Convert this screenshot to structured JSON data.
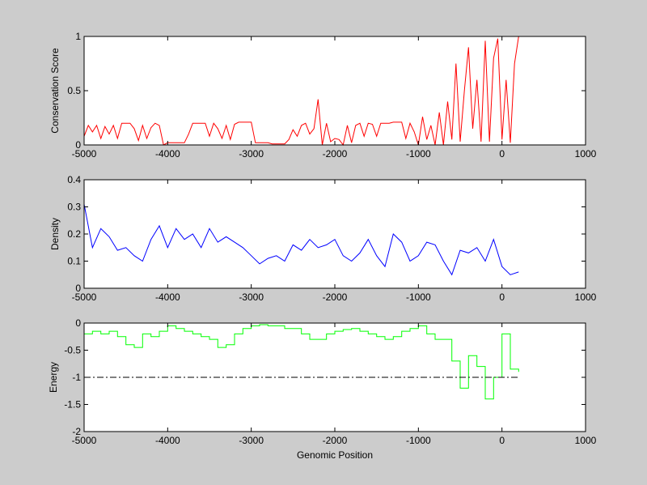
{
  "chart_data": [
    {
      "type": "line",
      "ylabel": "Conservation Score",
      "xlabel": "",
      "xlim": [
        -5000,
        1000
      ],
      "ylim": [
        0,
        1
      ],
      "xticks": [
        -5000,
        -4000,
        -3000,
        -2000,
        -1000,
        0,
        1000
      ],
      "yticks": [
        0,
        0.5,
        1
      ],
      "color": "#ff0000",
      "x_start": -5000,
      "x_step": 50,
      "values": [
        0.08,
        0.18,
        0.12,
        0.18,
        0.06,
        0.17,
        0.1,
        0.18,
        0.06,
        0.2,
        0.2,
        0.2,
        0.15,
        0.04,
        0.18,
        0.06,
        0.16,
        0.2,
        0.18,
        0.0,
        0.02,
        0.02,
        0.02,
        0.02,
        0.02,
        0.1,
        0.2,
        0.2,
        0.2,
        0.2,
        0.08,
        0.2,
        0.15,
        0.06,
        0.18,
        0.05,
        0.19,
        0.21,
        0.21,
        0.21,
        0.21,
        0.02,
        0.02,
        0.02,
        0.02,
        0.01,
        0.01,
        0.01,
        0.01,
        0.05,
        0.14,
        0.08,
        0.18,
        0.2,
        0.1,
        0.15,
        0.42,
        0.0,
        0.2,
        0.03,
        0.06,
        0.05,
        0.0,
        0.18,
        0.02,
        0.18,
        0.2,
        0.08,
        0.2,
        0.19,
        0.08,
        0.2,
        0.2,
        0.2,
        0.21,
        0.21,
        0.21,
        0.06,
        0.2,
        0.12,
        0.0,
        0.26,
        0.05,
        0.18,
        0.0,
        0.3,
        0.0,
        0.4,
        0.05,
        0.75,
        0.03,
        0.5,
        0.9,
        0.15,
        0.6,
        0.03,
        0.96,
        0.03,
        0.8,
        0.98,
        0.05,
        0.6,
        0.02,
        0.75,
        1.0
      ]
    },
    {
      "type": "line",
      "ylabel": "Density",
      "xlabel": "",
      "xlim": [
        -5000,
        1000
      ],
      "ylim": [
        0,
        0.4
      ],
      "xticks": [
        -5000,
        -4000,
        -3000,
        -2000,
        -1000,
        0,
        1000
      ],
      "yticks": [
        0,
        0.1,
        0.2,
        0.3,
        0.4
      ],
      "color": "#0000ff",
      "x_start": -5000,
      "x_step": 100,
      "values": [
        0.31,
        0.15,
        0.22,
        0.19,
        0.14,
        0.15,
        0.12,
        0.1,
        0.18,
        0.23,
        0.15,
        0.22,
        0.18,
        0.2,
        0.15,
        0.22,
        0.17,
        0.19,
        0.17,
        0.15,
        0.12,
        0.09,
        0.11,
        0.12,
        0.1,
        0.16,
        0.14,
        0.18,
        0.15,
        0.16,
        0.18,
        0.12,
        0.1,
        0.13,
        0.18,
        0.12,
        0.08,
        0.2,
        0.17,
        0.1,
        0.12,
        0.17,
        0.16,
        0.1,
        0.05,
        0.14,
        0.13,
        0.15,
        0.1,
        0.18,
        0.08,
        0.05,
        0.06
      ]
    },
    {
      "type": "line",
      "ylabel": "Energy",
      "xlabel": "Genomic Position",
      "xlim": [
        -5000,
        1000
      ],
      "ylim": [
        -2,
        0
      ],
      "xticks": [
        -5000,
        -4000,
        -3000,
        -2000,
        -1000,
        0,
        1000
      ],
      "yticks": [
        -2,
        -1.5,
        -1,
        -0.5,
        0
      ],
      "color": "#00ff00",
      "stairs": true,
      "threshold": {
        "value": -1,
        "x_from": -5000,
        "x_to": 200,
        "style": "dash-dot",
        "color": "#000000"
      },
      "x_start": -5000,
      "x_step": 100,
      "values": [
        -0.2,
        -0.15,
        -0.2,
        -0.15,
        -0.25,
        -0.4,
        -0.45,
        -0.2,
        -0.25,
        -0.15,
        -0.05,
        -0.1,
        -0.15,
        -0.2,
        -0.25,
        -0.3,
        -0.45,
        -0.4,
        -0.2,
        -0.1,
        -0.05,
        -0.03,
        -0.05,
        -0.05,
        -0.1,
        -0.1,
        -0.2,
        -0.3,
        -0.3,
        -0.2,
        -0.15,
        -0.12,
        -0.1,
        -0.15,
        -0.2,
        -0.25,
        -0.3,
        -0.25,
        -0.15,
        -0.1,
        -0.05,
        -0.2,
        -0.3,
        -0.3,
        -0.7,
        -1.2,
        -0.6,
        -0.8,
        -1.4,
        -1.0,
        -0.2,
        -0.85,
        -0.9
      ]
    }
  ]
}
